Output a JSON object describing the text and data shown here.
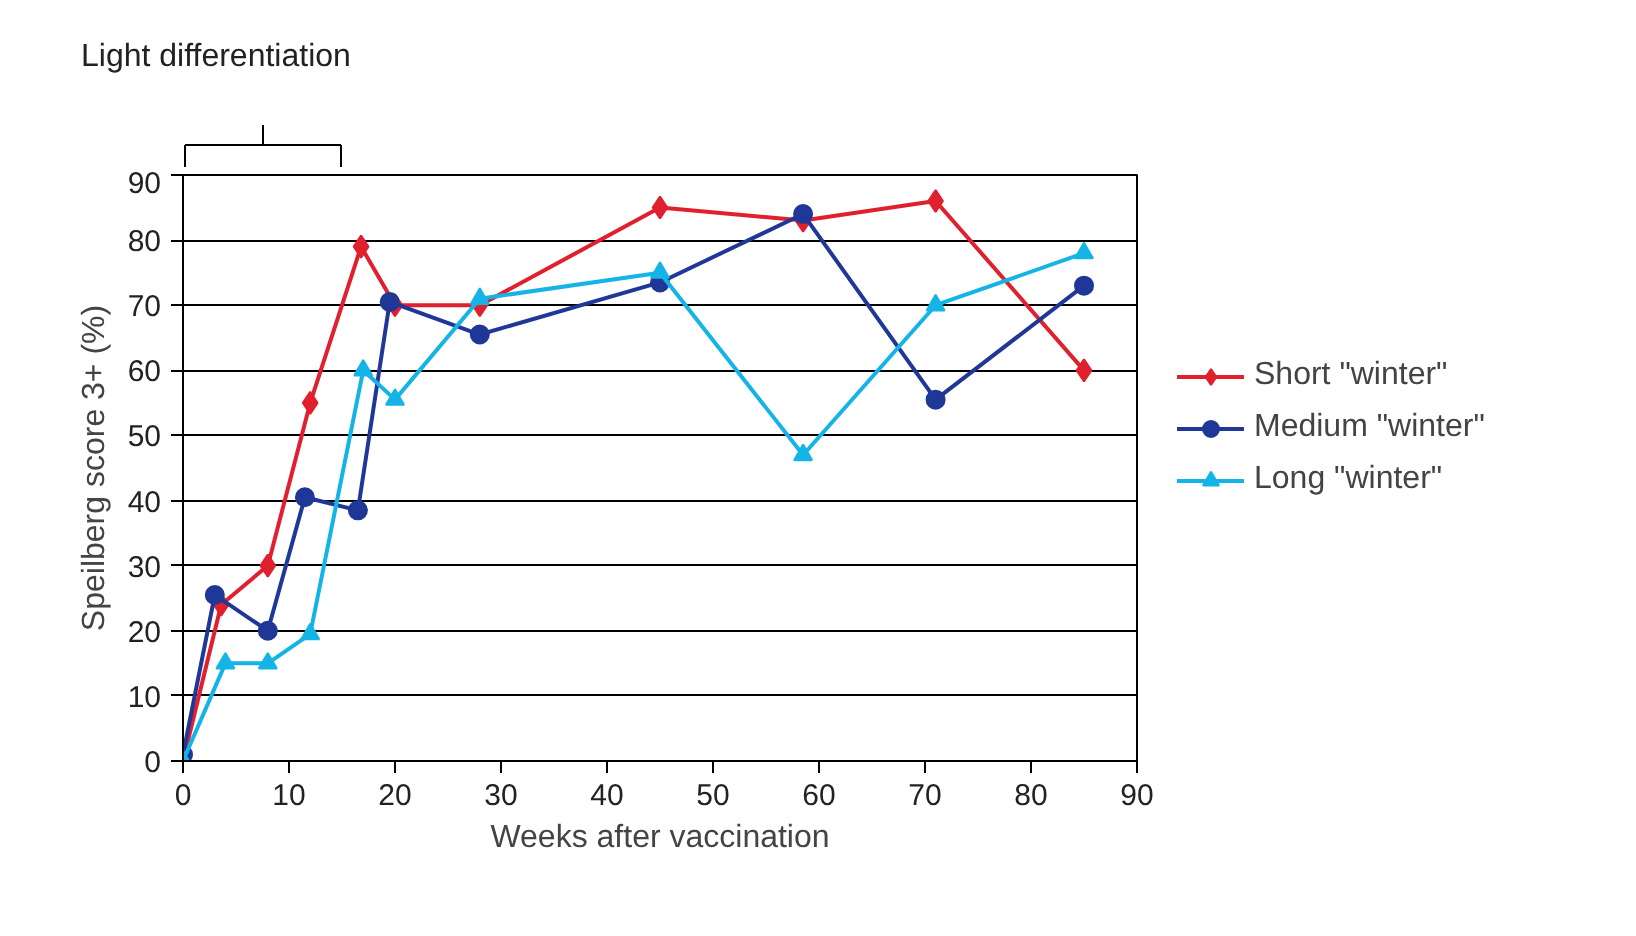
{
  "chart_data": {
    "type": "line",
    "xlabel": "Weeks after vaccination",
    "ylabel": "Speilberg score 3+ (%)",
    "xlim": [
      0,
      90
    ],
    "ylim": [
      0,
      90
    ],
    "xticks": [
      0,
      10,
      20,
      30,
      40,
      50,
      60,
      70,
      80,
      90
    ],
    "yticks": [
      0,
      10,
      20,
      30,
      40,
      50,
      60,
      70,
      80,
      90
    ],
    "grid": "y",
    "legend": "right",
    "line_style": "solid",
    "annotations": [
      "Light differentiation"
    ],
    "series": [
      {
        "name": "Short \"winter\"",
        "color": "#e0202e",
        "marker": "diamond",
        "x": [
          0,
          3.6,
          8,
          12,
          16.8,
          20,
          28,
          45,
          58.5,
          71,
          85
        ],
        "values": [
          0,
          24,
          30,
          55,
          79,
          70,
          70,
          85,
          83,
          86,
          60
        ]
      },
      {
        "name": "Medium \"winter\"",
        "color": "#1f3796",
        "marker": "circle",
        "x": [
          0,
          3,
          8,
          11.5,
          16.5,
          19.5,
          28,
          45,
          58.5,
          71,
          85
        ],
        "values": [
          1,
          25.5,
          20,
          40.5,
          38.5,
          70.5,
          65.5,
          73.5,
          84,
          55.5,
          73
        ]
      },
      {
        "name": "Long \"winter\"",
        "color": "#14b4e6",
        "marker": "triangle",
        "x": [
          0,
          4,
          8,
          12,
          17,
          20,
          28,
          45,
          58.5,
          71,
          85
        ],
        "values": [
          0,
          15,
          15,
          19.5,
          60,
          55.5,
          71,
          75,
          47,
          70,
          78
        ]
      }
    ]
  }
}
